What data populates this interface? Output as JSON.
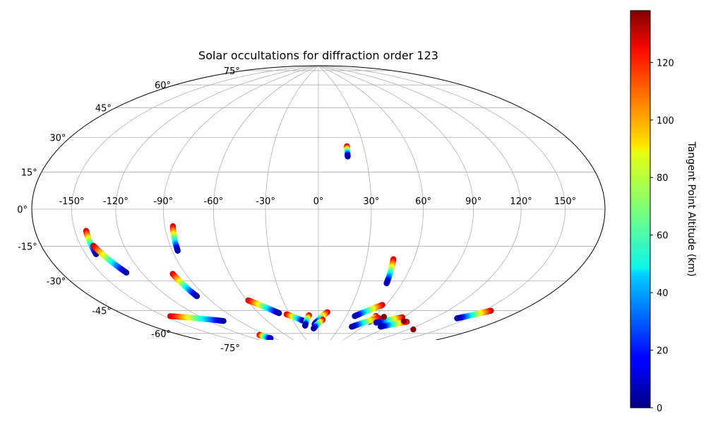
{
  "chart_data": {
    "type": "scatter",
    "projection": "hammer",
    "title": "Solar occultations for diffraction order 123",
    "xlabel": "",
    "ylabel": "",
    "grid": true,
    "lon_ticks": [
      -150,
      -120,
      -90,
      -60,
      -30,
      0,
      30,
      60,
      90,
      120,
      150
    ],
    "lon_tick_labels": [
      "-150°",
      "-120°",
      "-90°",
      "-60°",
      "-30°",
      "0°",
      "30°",
      "60°",
      "90°",
      "120°",
      "150°"
    ],
    "lat_ticks": [
      75,
      60,
      45,
      30,
      15,
      0,
      -15,
      -30,
      -45,
      -60,
      -75
    ],
    "lat_tick_labels": [
      "75°",
      "60°",
      "45°",
      "30°",
      "15°",
      "0°",
      "-15°",
      "-30°",
      "-45°",
      "-60°",
      "-75°"
    ],
    "xlim": [
      -180,
      180
    ],
    "ylim": [
      -90,
      90
    ],
    "colorbar": {
      "label": "Tangent Point Altitude (km)",
      "colormap": "jet",
      "range": [
        0,
        138
      ],
      "ticks": [
        0,
        20,
        40,
        60,
        80,
        100,
        120
      ],
      "tick_labels": [
        "0",
        "20",
        "40",
        "60",
        "80",
        "100",
        "120"
      ]
    },
    "tracks": [
      {
        "lon": [
          -142,
          -142.5
        ],
        "lat": [
          -10,
          -21
        ],
        "alt": [
          130,
          5
        ]
      },
      {
        "lon": [
          -141,
          -131
        ],
        "lat": [
          -17,
          -31
        ],
        "alt": [
          130,
          5
        ]
      },
      {
        "lon": [
          -85,
          -86.5
        ],
        "lat": [
          -9,
          -22
        ],
        "alt": [
          130,
          5
        ]
      },
      {
        "lon": [
          -99,
          -97
        ],
        "lat": [
          -34,
          -47
        ],
        "alt": [
          130,
          5
        ]
      },
      {
        "lon": [
          -145,
          -106
        ],
        "lat": [
          -54,
          -62
        ],
        "alt": [
          130,
          5
        ]
      },
      {
        "lon": [
          -100,
          -96
        ],
        "lat": [
          -73,
          -76
        ],
        "alt": [
          130,
          10
        ]
      },
      {
        "lon": [
          -59,
          -40
        ],
        "lat": [
          -52,
          -61
        ],
        "alt": [
          130,
          5
        ]
      },
      {
        "lon": [
          -33,
          -17
        ],
        "lat": [
          -62,
          -67
        ],
        "alt": [
          130,
          5
        ]
      },
      {
        "lon": [
          -10,
          -18
        ],
        "lat": [
          -63,
          -70
        ],
        "alt": [
          130,
          5
        ]
      },
      {
        "lon": [
          9,
          -5
        ],
        "lat": [
          -61,
          -69
        ],
        "alt": [
          130,
          5
        ]
      },
      {
        "lon": [
          5,
          -7
        ],
        "lat": [
          -66,
          -72
        ],
        "alt": [
          130,
          5
        ]
      },
      {
        "lon": [
          19,
          18.5
        ],
        "lat": [
          36,
          30
        ],
        "alt": [
          130,
          5
        ]
      },
      {
        "lon": [
          47,
          49
        ],
        "lat": [
          -28,
          -42
        ],
        "alt": [
          130,
          5
        ]
      },
      {
        "lon": [
          57,
          39
        ],
        "lat": [
          -55,
          -63
        ],
        "alt": [
          130,
          5
        ]
      },
      {
        "lon": [
          61,
          61
        ],
        "lat": [
          -62,
          -66
        ],
        "alt": [
          130,
          30
        ]
      },
      {
        "lon": [
          66,
          46
        ],
        "lat": [
          -63,
          -70
        ],
        "alt": [
          130,
          5
        ]
      },
      {
        "lon": [
          89,
          70
        ],
        "lat": [
          -61,
          -66
        ],
        "alt": [
          130,
          5
        ]
      },
      {
        "lon": [
          101,
          82
        ],
        "lat": [
          -63,
          -68
        ],
        "alt": [
          130,
          5
        ]
      },
      {
        "lon": [
          156,
          141
        ],
        "lat": [
          -49,
          -56
        ],
        "alt": [
          130,
          5
        ]
      }
    ],
    "isolated_points": [
      {
        "lon": 70,
        "lat": -62,
        "alt": 138
      },
      {
        "lon": 97,
        "lat": -63,
        "alt": 138
      },
      {
        "lon": 125,
        "lat": -66,
        "alt": 138
      }
    ]
  }
}
